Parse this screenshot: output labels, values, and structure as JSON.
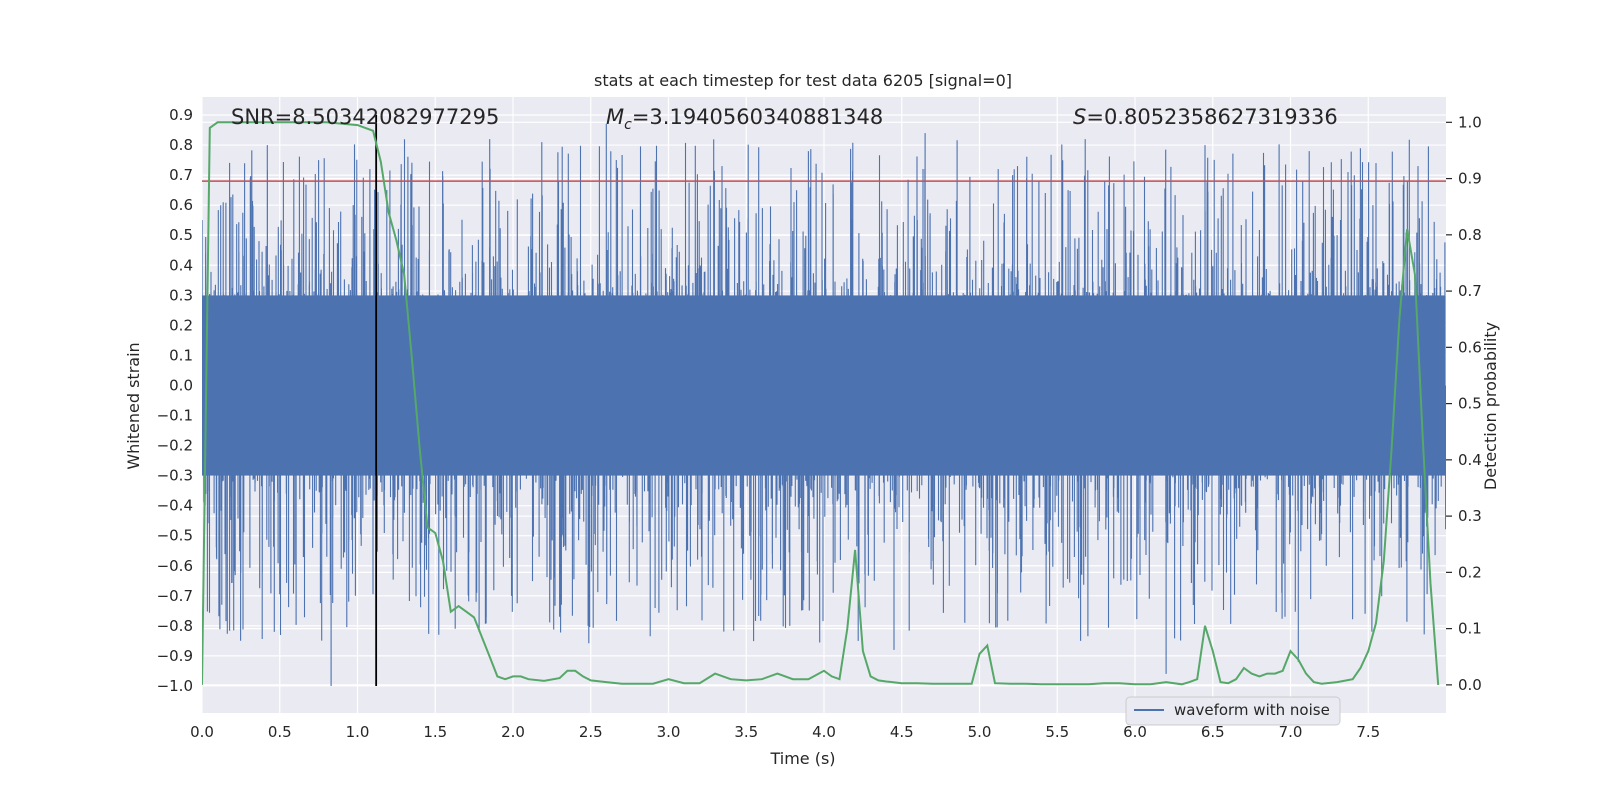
{
  "chart_data": {
    "type": "line",
    "title": "stats at each timestep for test data 6205 [signal=0]",
    "xlabel": "Time (s)",
    "ylabel": "Whitened strain",
    "ylabel_right": "Detection probability",
    "xlim": [
      0.0,
      8.0
    ],
    "ylim": [
      -1.09,
      0.96
    ],
    "ylim_right": [
      -0.05,
      1.045
    ],
    "x_ticks": [
      "0.0",
      "0.5",
      "1.0",
      "1.5",
      "2.0",
      "2.5",
      "3.0",
      "3.5",
      "4.0",
      "4.5",
      "5.0",
      "5.5",
      "6.0",
      "6.5",
      "7.0",
      "7.5"
    ],
    "x_tick_values": [
      0.0,
      0.5,
      1.0,
      1.5,
      2.0,
      2.5,
      3.0,
      3.5,
      4.0,
      4.5,
      5.0,
      5.5,
      6.0,
      6.5,
      7.0,
      7.5
    ],
    "y_ticks": [
      "0.9",
      "0.8",
      "0.7",
      "0.6",
      "0.5",
      "0.4",
      "0.3",
      "0.2",
      "0.1",
      "0.0",
      "−0.1",
      "−0.2",
      "−0.3",
      "−0.4",
      "−0.5",
      "−0.6",
      "−0.7",
      "−0.8",
      "−0.9",
      "−1.0"
    ],
    "y_tick_values": [
      0.9,
      0.8,
      0.7,
      0.6,
      0.5,
      0.4,
      0.3,
      0.2,
      0.1,
      0.0,
      -0.1,
      -0.2,
      -0.3,
      -0.4,
      -0.5,
      -0.6,
      -0.7,
      -0.8,
      -0.9,
      -1.0
    ],
    "y_right_ticks": [
      "1.0",
      "0.9",
      "0.8",
      "0.7",
      "0.6",
      "0.5",
      "0.4",
      "0.3",
      "0.2",
      "0.1",
      "0.0"
    ],
    "y_right_tick_values": [
      1.0,
      0.9,
      0.8,
      0.7,
      0.6,
      0.5,
      0.4,
      0.3,
      0.2,
      0.1,
      0.0
    ],
    "annotations": {
      "snr": "SNR=8.50342082977295",
      "mc_symbol": "M",
      "mc_subscript": "c",
      "mc_value": "=3.1940560340881348",
      "s_symbol": "S",
      "s_value": "=0.8052358627319336"
    },
    "legend": {
      "label": "waveform with noise",
      "position": "lower-right"
    },
    "series": [
      {
        "name": "waveform with noise",
        "color": "#4c72b0",
        "kind": "noise",
        "dense_amplitude": 0.3,
        "x_range": [
          0.0,
          8.0
        ],
        "peaks": [
          [
            0.12,
            0.6
          ],
          [
            0.42,
            0.8
          ],
          [
            0.75,
            0.75
          ],
          [
            1.08,
            0.72
          ],
          [
            1.85,
            0.82
          ],
          [
            2.6,
            0.87
          ],
          [
            3.9,
            0.78
          ],
          [
            4.65,
            0.84
          ],
          [
            5.12,
            0.72
          ],
          [
            5.68,
            0.82
          ],
          [
            6.45,
            0.8
          ],
          [
            7.12,
            0.78
          ],
          [
            7.82,
            0.73
          ],
          [
            0.83,
            -1.0
          ],
          [
            2.3,
            -0.77
          ],
          [
            3.78,
            -0.8
          ],
          [
            4.22,
            -0.85
          ],
          [
            4.45,
            -0.88
          ],
          [
            5.65,
            -0.85
          ],
          [
            6.2,
            -0.96
          ],
          [
            7.05,
            -0.92
          ],
          [
            7.48,
            -0.76
          ]
        ]
      },
      {
        "name": "Detection probability",
        "color": "#55a868",
        "axis": "right",
        "x": [
          0.0,
          0.05,
          0.1,
          0.2,
          0.4,
          0.6,
          0.8,
          1.0,
          1.05,
          1.1,
          1.15,
          1.2,
          1.25,
          1.3,
          1.35,
          1.4,
          1.45,
          1.5,
          1.55,
          1.6,
          1.65,
          1.7,
          1.75,
          1.8,
          1.85,
          1.9,
          1.95,
          2.0,
          2.05,
          2.1,
          2.2,
          2.3,
          2.35,
          2.4,
          2.45,
          2.5,
          2.6,
          2.7,
          2.8,
          2.9,
          3.0,
          3.1,
          3.2,
          3.3,
          3.4,
          3.5,
          3.6,
          3.7,
          3.8,
          3.9,
          4.0,
          4.05,
          4.1,
          4.15,
          4.2,
          4.25,
          4.3,
          4.35,
          4.4,
          4.5,
          4.6,
          4.7,
          4.8,
          4.9,
          4.95,
          5.0,
          5.05,
          5.1,
          5.2,
          5.3,
          5.4,
          5.5,
          5.6,
          5.7,
          5.8,
          5.9,
          6.0,
          6.1,
          6.2,
          6.3,
          6.35,
          6.4,
          6.45,
          6.5,
          6.55,
          6.6,
          6.65,
          6.7,
          6.75,
          6.8,
          6.85,
          6.9,
          6.95,
          7.0,
          7.05,
          7.1,
          7.15,
          7.2,
          7.3,
          7.4,
          7.45,
          7.5,
          7.55,
          7.6,
          7.65,
          7.7,
          7.75,
          7.8,
          7.85,
          7.9,
          7.95
        ],
        "y": [
          0.0,
          0.99,
          1.0,
          1.0,
          1.0,
          1.0,
          1.0,
          0.995,
          0.99,
          0.985,
          0.93,
          0.84,
          0.79,
          0.73,
          0.58,
          0.42,
          0.28,
          0.27,
          0.22,
          0.13,
          0.14,
          0.13,
          0.12,
          0.085,
          0.05,
          0.015,
          0.01,
          0.015,
          0.015,
          0.01,
          0.007,
          0.012,
          0.025,
          0.025,
          0.015,
          0.008,
          0.005,
          0.002,
          0.002,
          0.002,
          0.01,
          0.003,
          0.003,
          0.02,
          0.01,
          0.008,
          0.01,
          0.02,
          0.01,
          0.01,
          0.025,
          0.015,
          0.01,
          0.1,
          0.24,
          0.06,
          0.015,
          0.008,
          0.006,
          0.003,
          0.003,
          0.002,
          0.002,
          0.002,
          0.002,
          0.055,
          0.07,
          0.003,
          0.002,
          0.002,
          0.001,
          0.001,
          0.001,
          0.001,
          0.003,
          0.003,
          0.001,
          0.001,
          0.005,
          0.001,
          0.005,
          0.01,
          0.105,
          0.06,
          0.005,
          0.003,
          0.01,
          0.03,
          0.02,
          0.015,
          0.02,
          0.02,
          0.025,
          0.06,
          0.045,
          0.02,
          0.005,
          0.002,
          0.005,
          0.01,
          0.03,
          0.06,
          0.11,
          0.22,
          0.42,
          0.65,
          0.81,
          0.73,
          0.44,
          0.18,
          0.0
        ]
      }
    ],
    "reference_lines": [
      {
        "name": "threshold",
        "orientation": "horizontal",
        "axis": "left",
        "value": 0.68,
        "color": "#c44e52"
      },
      {
        "name": "event-marker",
        "orientation": "vertical",
        "value": 1.12,
        "y_from": -1.0,
        "y_to": 0.9,
        "color": "#000000"
      }
    ]
  }
}
